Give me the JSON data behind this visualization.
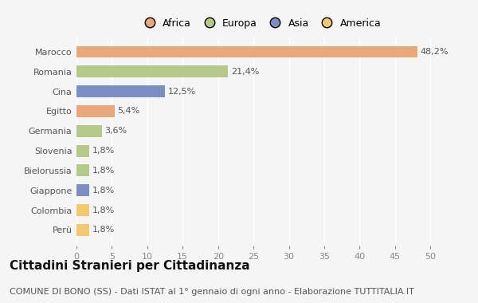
{
  "categories": [
    "Marocco",
    "Romania",
    "Cina",
    "Egitto",
    "Germania",
    "Slovenia",
    "Bielorussia",
    "Giappone",
    "Colombia",
    "Perù"
  ],
  "values": [
    48.2,
    21.4,
    12.5,
    5.4,
    3.6,
    1.8,
    1.8,
    1.8,
    1.8,
    1.8
  ],
  "labels": [
    "48,2%",
    "21,4%",
    "12,5%",
    "5,4%",
    "3,6%",
    "1,8%",
    "1,8%",
    "1,8%",
    "1,8%",
    "1,8%"
  ],
  "colors": [
    "#E8A87C",
    "#B5C98A",
    "#7C8FC4",
    "#E8A87C",
    "#B5C98A",
    "#B5C98A",
    "#B5C98A",
    "#7C8FC4",
    "#F2C96E",
    "#F2C96E"
  ],
  "legend_labels": [
    "Africa",
    "Europa",
    "Asia",
    "America"
  ],
  "legend_colors": [
    "#E8A87C",
    "#B5C98A",
    "#7C8FC4",
    "#F2C96E"
  ],
  "xlim": [
    0,
    52
  ],
  "xticks": [
    0,
    5,
    10,
    15,
    20,
    25,
    30,
    35,
    40,
    45,
    50
  ],
  "title": "Cittadini Stranieri per Cittadinanza",
  "subtitle": "COMUNE DI BONO (SS) - Dati ISTAT al 1° gennaio di ogni anno - Elaborazione TUTTITALIA.IT",
  "background_color": "#f5f5f5",
  "bar_height": 0.6,
  "title_fontsize": 11,
  "subtitle_fontsize": 8,
  "label_fontsize": 8,
  "tick_fontsize": 8,
  "legend_fontsize": 9
}
